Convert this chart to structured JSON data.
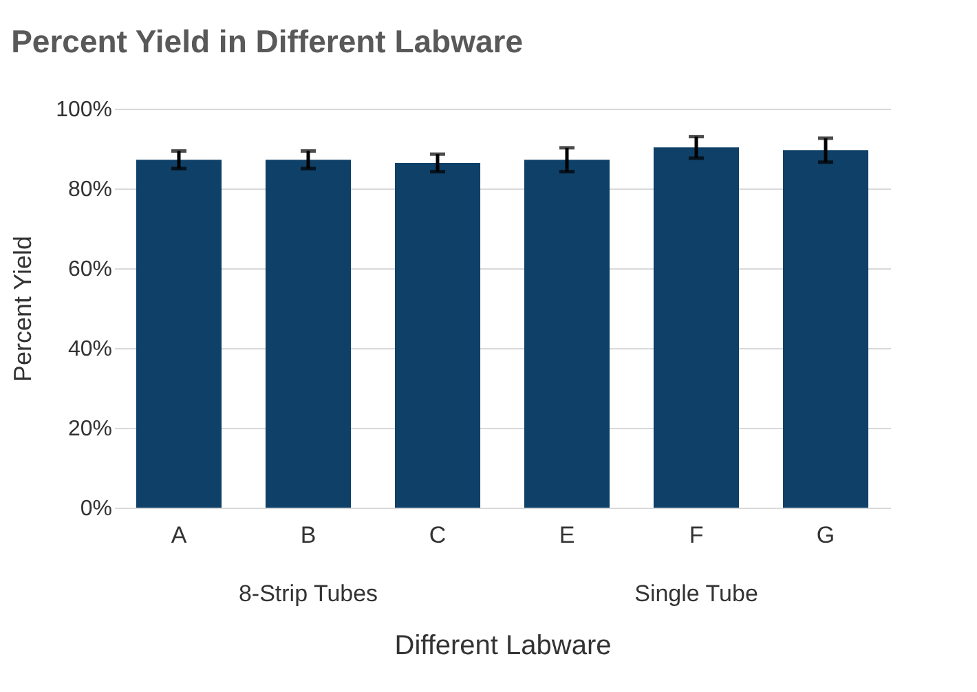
{
  "chart_data": {
    "type": "bar",
    "title": "Percent Yield in Different Labware",
    "xlabel": "Different Labware",
    "ylabel": "Percent Yield",
    "categories": [
      "A",
      "B",
      "C",
      "E",
      "F",
      "G"
    ],
    "values": [
      87.2,
      87.2,
      86.4,
      87.2,
      90.3,
      89.6
    ],
    "errors": [
      2.2,
      2.2,
      2.2,
      3.0,
      2.7,
      3.0
    ],
    "color": "#0e4068",
    "ylim": [
      0,
      100
    ],
    "yticks": [
      {
        "value": 0,
        "label": "0%"
      },
      {
        "value": 20,
        "label": "20%"
      },
      {
        "value": 40,
        "label": "40%"
      },
      {
        "value": 60,
        "label": "60%"
      },
      {
        "value": 80,
        "label": "80%"
      },
      {
        "value": 100,
        "label": "100%"
      }
    ],
    "grid": "y",
    "annotations": [
      "8-Strip Tubes",
      "Single Tube"
    ]
  }
}
